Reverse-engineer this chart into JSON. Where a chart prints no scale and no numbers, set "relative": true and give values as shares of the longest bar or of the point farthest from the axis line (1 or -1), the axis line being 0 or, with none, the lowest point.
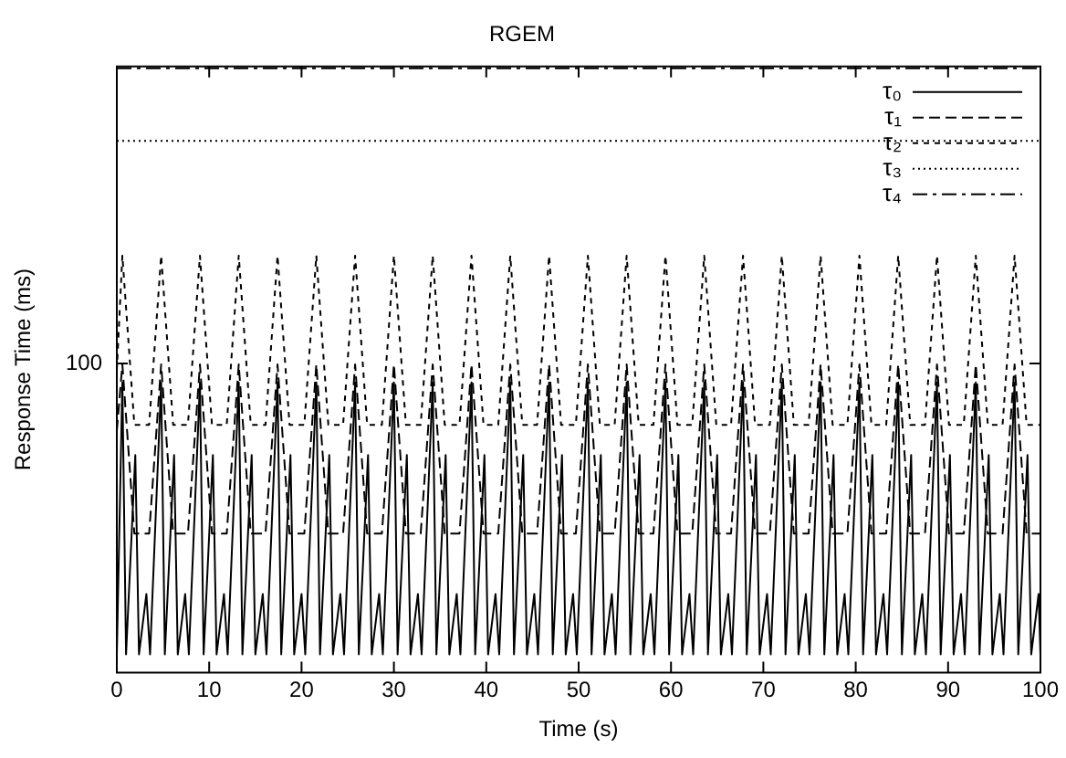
{
  "chart_data": {
    "type": "line",
    "title": "RGEM",
    "xlabel": "Time (s)",
    "ylabel": "Response Time (ms)",
    "annotations": [
      "100"
    ],
    "relative": true,
    "xlim": [
      0,
      100
    ],
    "xticks": [
      0,
      10,
      20,
      30,
      40,
      50,
      60,
      70,
      80,
      90,
      100
    ],
    "grid": false,
    "legend": "top right",
    "marker": "none",
    "series": [
      {
        "name": "τ₀",
        "color": "#000000",
        "line_style": "solid",
        "x": [
          0,
          0.6,
          1,
          2,
          2.4,
          3.2,
          3.6,
          4.8,
          5.2,
          6.2,
          6.6,
          7.4,
          7.8,
          9,
          9.4,
          10.4,
          10.8,
          11.6,
          12,
          13.2,
          13.6,
          14.6,
          15,
          15.8,
          16.2,
          17.4,
          17.8,
          18.8,
          19.2,
          20,
          20.4,
          21.6,
          22,
          23,
          23.4,
          24.2,
          24.6,
          25.8,
          26.2,
          27.2,
          27.6,
          28.4,
          28.8,
          30,
          30.4,
          31.4,
          31.8,
          32.6,
          33,
          34.2,
          34.6,
          35.6,
          36,
          36.8,
          37.2,
          38.4,
          38.8,
          39.8,
          40.2,
          41,
          41.4,
          42.6,
          43,
          44,
          44.4,
          45.2,
          45.6,
          46.8,
          47.2,
          48.2,
          48.6,
          49.4,
          49.8,
          51,
          51.4,
          52.4,
          52.8,
          53.6,
          54,
          55.2,
          55.6,
          56.6,
          57,
          57.8,
          58.2,
          59.4,
          59.8,
          60.8,
          61.2,
          62,
          62.4,
          63.6,
          64,
          65,
          65.4,
          66.2,
          66.6,
          67.8,
          68.2,
          69.2,
          69.6,
          70.4,
          70.8,
          72,
          72.4,
          73.4,
          73.8,
          74.6,
          75,
          76.2,
          76.6,
          77.6,
          78,
          78.8,
          79.2,
          80.4,
          80.8,
          81.8,
          82.2,
          83,
          83.4,
          84.6,
          85,
          86,
          86.4,
          87.2,
          87.6,
          88.8,
          89.2,
          90.2,
          90.6,
          91.4,
          91.8,
          93,
          93.4,
          94.4,
          94.8,
          95.6,
          96,
          97.2,
          97.6,
          98.6,
          99,
          99.8,
          100
        ],
        "values": [
          0.03,
          0.48,
          0.03,
          0.36,
          0.03,
          0.13,
          0.03,
          0.48,
          0.03,
          0.36,
          0.03,
          0.13,
          0.03,
          0.48,
          0.03,
          0.36,
          0.03,
          0.13,
          0.03,
          0.48,
          0.03,
          0.36,
          0.03,
          0.13,
          0.03,
          0.48,
          0.03,
          0.36,
          0.03,
          0.13,
          0.03,
          0.48,
          0.03,
          0.36,
          0.03,
          0.13,
          0.03,
          0.48,
          0.03,
          0.36,
          0.03,
          0.13,
          0.03,
          0.48,
          0.03,
          0.36,
          0.03,
          0.13,
          0.03,
          0.48,
          0.03,
          0.36,
          0.03,
          0.13,
          0.03,
          0.48,
          0.03,
          0.36,
          0.03,
          0.13,
          0.03,
          0.48,
          0.03,
          0.36,
          0.03,
          0.13,
          0.03,
          0.48,
          0.03,
          0.36,
          0.03,
          0.13,
          0.03,
          0.48,
          0.03,
          0.36,
          0.03,
          0.13,
          0.03,
          0.48,
          0.03,
          0.36,
          0.03,
          0.13,
          0.03,
          0.48,
          0.03,
          0.36,
          0.03,
          0.13,
          0.03,
          0.48,
          0.03,
          0.36,
          0.03,
          0.13,
          0.03,
          0.48,
          0.03,
          0.36,
          0.03,
          0.13,
          0.03,
          0.48,
          0.03,
          0.36,
          0.03,
          0.13,
          0.03,
          0.48,
          0.03,
          0.36,
          0.03,
          0.13,
          0.03,
          0.48,
          0.03,
          0.36,
          0.03,
          0.13,
          0.03,
          0.48,
          0.03,
          0.36,
          0.03,
          0.13,
          0.03,
          0.48,
          0.03,
          0.36,
          0.03,
          0.13,
          0.03,
          0.48,
          0.03,
          0.36,
          0.03,
          0.13,
          0.03,
          0.48,
          0.03,
          0.36,
          0.03,
          0.13,
          0.03
        ]
      },
      {
        "name": "τ₁",
        "color": "#000000",
        "line_style": "dashed",
        "x": [
          0,
          0.6,
          1.9,
          3.5,
          4.8,
          6.1,
          7.7,
          9,
          10.3,
          11.9,
          13.2,
          14.5,
          16.1,
          17.4,
          18.7,
          20.3,
          21.6,
          22.9,
          24.5,
          25.8,
          27.1,
          28.7,
          30,
          31.3,
          32.9,
          34.2,
          35.5,
          37.1,
          38.4,
          39.7,
          41.3,
          42.6,
          43.9,
          45.5,
          46.8,
          48.1,
          49.7,
          51,
          52.3,
          53.9,
          55.2,
          56.5,
          58.1,
          59.4,
          60.7,
          62.3,
          63.6,
          64.9,
          66.5,
          67.8,
          69.1,
          70.7,
          72,
          73.3,
          74.9,
          76.2,
          77.5,
          79.1,
          80.4,
          81.7,
          83.3,
          84.6,
          85.9,
          87.5,
          88.8,
          90.1,
          91.7,
          93,
          94.3,
          95.9,
          97.2,
          98.5,
          100
        ],
        "values": [
          0.4,
          0.51,
          0.23,
          0.23,
          0.51,
          0.23,
          0.23,
          0.51,
          0.23,
          0.23,
          0.51,
          0.23,
          0.23,
          0.51,
          0.23,
          0.23,
          0.51,
          0.23,
          0.23,
          0.51,
          0.23,
          0.23,
          0.51,
          0.23,
          0.23,
          0.51,
          0.23,
          0.23,
          0.51,
          0.23,
          0.23,
          0.51,
          0.23,
          0.23,
          0.51,
          0.23,
          0.23,
          0.51,
          0.23,
          0.23,
          0.51,
          0.23,
          0.23,
          0.51,
          0.23,
          0.23,
          0.51,
          0.23,
          0.23,
          0.51,
          0.23,
          0.23,
          0.51,
          0.23,
          0.23,
          0.51,
          0.23,
          0.23,
          0.51,
          0.23,
          0.23,
          0.51,
          0.23,
          0.23,
          0.51,
          0.23,
          0.23,
          0.51,
          0.23,
          0.23,
          0.51,
          0.23,
          0.23
        ]
      },
      {
        "name": "τ₂",
        "color": "#000000",
        "line_style": "dotted",
        "x": [
          0,
          0.6,
          1.9,
          3.5,
          4.8,
          6.1,
          7.7,
          9,
          10.3,
          11.9,
          13.2,
          14.5,
          16.1,
          17.4,
          18.7,
          20.3,
          21.6,
          22.9,
          24.5,
          25.8,
          27.1,
          28.7,
          30,
          31.3,
          32.9,
          34.2,
          35.5,
          37.1,
          38.4,
          39.7,
          41.3,
          42.6,
          43.9,
          45.5,
          46.8,
          48.1,
          49.7,
          51,
          52.3,
          53.9,
          55.2,
          56.5,
          58.1,
          59.4,
          60.7,
          62.3,
          63.6,
          64.9,
          66.5,
          67.8,
          69.1,
          70.7,
          72,
          73.3,
          74.9,
          76.2,
          77.5,
          79.1,
          80.4,
          81.7,
          83.3,
          84.6,
          85.9,
          87.5,
          88.8,
          90.1,
          91.7,
          93,
          94.3,
          95.9,
          97.2,
          98.5,
          100
        ],
        "values": [
          0.5,
          0.69,
          0.41,
          0.41,
          0.69,
          0.41,
          0.41,
          0.69,
          0.41,
          0.41,
          0.69,
          0.41,
          0.41,
          0.69,
          0.41,
          0.41,
          0.69,
          0.41,
          0.41,
          0.69,
          0.41,
          0.41,
          0.69,
          0.41,
          0.41,
          0.69,
          0.41,
          0.41,
          0.69,
          0.41,
          0.41,
          0.69,
          0.41,
          0.41,
          0.69,
          0.41,
          0.41,
          0.69,
          0.41,
          0.41,
          0.69,
          0.41,
          0.41,
          0.69,
          0.41,
          0.41,
          0.69,
          0.41,
          0.41,
          0.69,
          0.41,
          0.41,
          0.69,
          0.41,
          0.41,
          0.69,
          0.41,
          0.41,
          0.69,
          0.41,
          0.41,
          0.69,
          0.41,
          0.41,
          0.69,
          0.41,
          0.41,
          0.69,
          0.41,
          0.41,
          0.69,
          0.41,
          0.41
        ]
      },
      {
        "name": "τ₃",
        "color": "#000000",
        "line_style": "dotted",
        "x": [
          0,
          100
        ],
        "values": [
          0.88,
          0.88
        ]
      },
      {
        "name": "τ₄",
        "color": "#000000",
        "line_style": "dashed",
        "x": [
          0,
          100
        ],
        "values": [
          1,
          1
        ]
      }
    ]
  }
}
